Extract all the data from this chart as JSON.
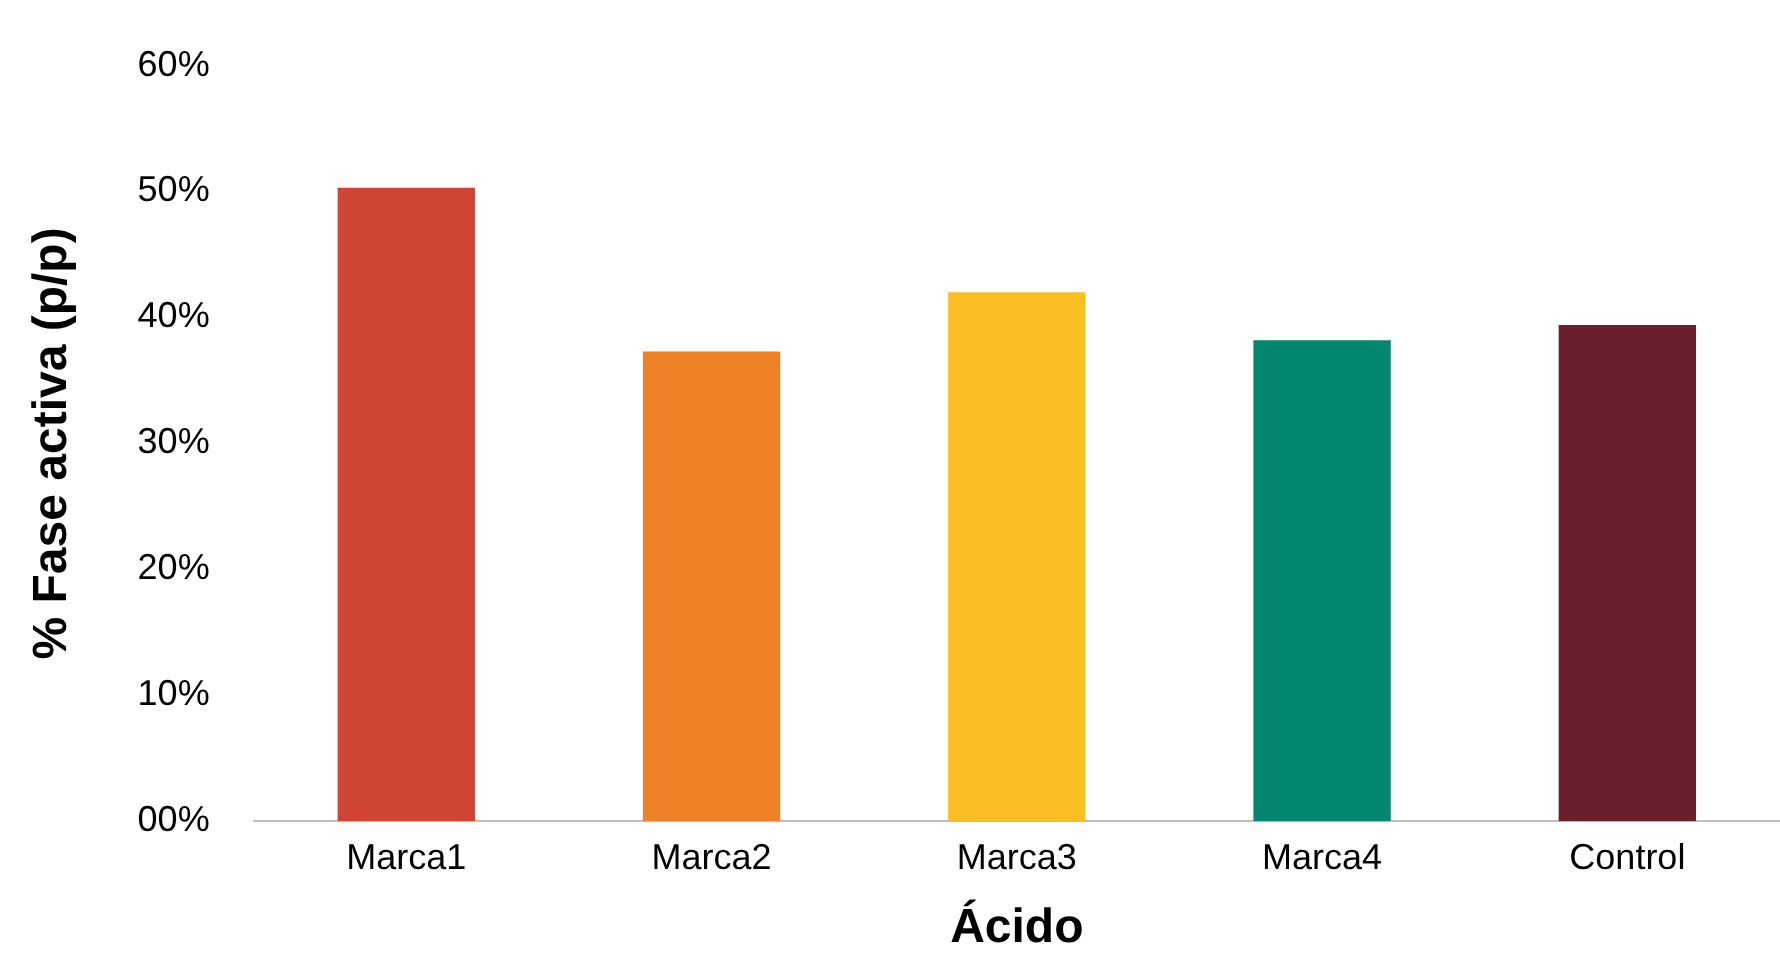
{
  "chart_data": {
    "type": "bar",
    "xlabel": "Ácido",
    "ylabel": "% Fase activa (p/p)",
    "categories": [
      "Marca1",
      "Marca2",
      "Marca3",
      "Marca4",
      "Control"
    ],
    "values": [
      50.3,
      37.3,
      42.0,
      38.2,
      39.4
    ],
    "colors": [
      "#d04433",
      "#ec8125",
      "#f9bf22",
      "#05876f",
      "#6b1f2d"
    ],
    "ylim": [
      0,
      60
    ],
    "yticks": [
      {
        "value": 0,
        "label": "00%"
      },
      {
        "value": 10,
        "label": "10%"
      },
      {
        "value": 20,
        "label": "20%"
      },
      {
        "value": 30,
        "label": "30%"
      },
      {
        "value": 40,
        "label": "40%"
      },
      {
        "value": 50,
        "label": "50%"
      },
      {
        "value": 60,
        "label": "60%"
      }
    ],
    "grid": false,
    "legend": false
  }
}
